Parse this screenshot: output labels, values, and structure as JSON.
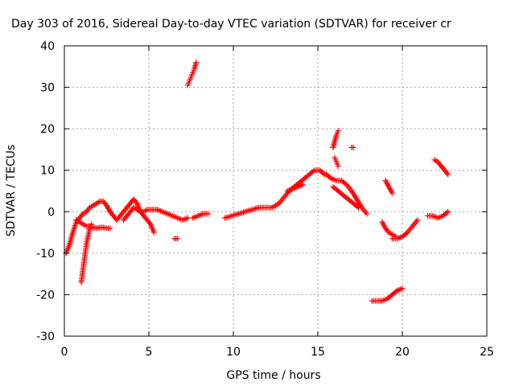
{
  "chart_data": {
    "type": "scatter",
    "title": "Day 303 of 2016, Sidereal Day-to-day VTEC variation (SDTVAR) for receiver cr",
    "xlabel": "GPS time / hours",
    "ylabel": "SDTVAR / TECUs",
    "xlim": [
      0,
      25
    ],
    "ylim": [
      -30,
      40
    ],
    "xticks": [
      0,
      5,
      10,
      15,
      20,
      25
    ],
    "yticks": [
      -30,
      -20,
      -10,
      0,
      10,
      20,
      30,
      40
    ],
    "grid": true,
    "marker": "plus",
    "color": "#ff0000",
    "series": [
      {
        "x": [
          0.1,
          0.3,
          0.5,
          0.7,
          0.9,
          1.1,
          1.3,
          1.5,
          1.7,
          1.9,
          2.1,
          2.3,
          2.5,
          2.7
        ],
        "y": [
          -10,
          -8,
          -5,
          -2.5,
          -1.5,
          -0.5,
          0,
          1,
          1.5,
          2,
          2.5,
          2.5,
          1.5,
          0
        ]
      },
      {
        "x": [
          0.7,
          0.9,
          1.1,
          1.3,
          1.5,
          1.7,
          1.9,
          2.1,
          2.3,
          2.5,
          2.7
        ],
        "y": [
          -2,
          -2.5,
          -3,
          -3.5,
          -3.5,
          -3.8,
          -4,
          -3.8,
          -3.8,
          -4,
          -4
        ]
      },
      {
        "x": [
          1.0,
          1.1,
          1.2,
          1.3,
          1.4,
          1.5,
          1.6
        ],
        "y": [
          -17,
          -14,
          -11,
          -8,
          -6,
          -4,
          -3
        ]
      },
      {
        "x": [
          2.7,
          2.9,
          3.1,
          3.3,
          3.5,
          3.7,
          3.9,
          4.1,
          4.3,
          4.5,
          4.7,
          4.9,
          5.1,
          5.3
        ],
        "y": [
          0,
          -1,
          -2,
          -1,
          0,
          1,
          2,
          3,
          2,
          0,
          -1,
          -2,
          -3,
          -5
        ]
      },
      {
        "x": [
          3.5,
          3.7,
          3.9,
          4.1,
          4.3,
          4.5,
          4.7,
          4.9,
          5.1,
          5.3,
          5.5
        ],
        "y": [
          -2,
          -1,
          0,
          1,
          0.5,
          0,
          0,
          0.5,
          0.5,
          0.5,
          0.5
        ]
      },
      {
        "x": [
          5.5,
          5.8,
          6.1,
          6.4,
          6.7,
          7.0,
          7.3
        ],
        "y": [
          0.5,
          0,
          -0.5,
          -1,
          -1.5,
          -2,
          -1.5
        ]
      },
      {
        "x": [
          6.5,
          6.6,
          6.7
        ],
        "y": [
          -6.5,
          -6.5,
          -6.5
        ]
      },
      {
        "x": [
          7.3,
          7.4,
          7.5,
          7.6,
          7.7,
          7.8
        ],
        "y": [
          30.5,
          31.5,
          32.5,
          33.5,
          34.5,
          36
        ]
      },
      {
        "x": [
          7.6,
          7.9,
          8.2,
          8.5
        ],
        "y": [
          -1.5,
          -1,
          -0.5,
          -0.5
        ]
      },
      {
        "x": [
          9.5,
          9.9,
          10.3,
          10.7,
          11.1,
          11.5,
          11.9,
          12.3,
          12.7
        ],
        "y": [
          -1.5,
          -1,
          -0.5,
          0,
          0.5,
          1,
          1,
          1,
          2
        ]
      },
      {
        "x": [
          12.7,
          13.0,
          13.3,
          13.6,
          13.9,
          14.2,
          14.5,
          14.8,
          15.1,
          15.4
        ],
        "y": [
          2,
          3.5,
          5,
          6,
          7,
          8,
          9,
          10,
          10,
          9
        ]
      },
      {
        "x": [
          13.2,
          13.5,
          13.8,
          14.1
        ],
        "y": [
          5,
          5.5,
          6,
          6.5
        ]
      },
      {
        "x": [
          15.5,
          15.8,
          16.1,
          16.4,
          16.7,
          17.0,
          17.3,
          17.6,
          17.9
        ],
        "y": [
          9,
          8,
          7.5,
          7.5,
          6.5,
          5,
          3,
          1,
          -0.5
        ]
      },
      {
        "x": [
          15.9,
          16.2,
          16.5,
          16.8,
          17.1,
          17.4
        ],
        "y": [
          6,
          5,
          4,
          3,
          2,
          1
        ]
      },
      {
        "x": [
          15.9,
          16.0,
          16.1,
          16.2
        ],
        "y": [
          15.5,
          17,
          18.5,
          19.5
        ]
      },
      {
        "x": [
          16.0,
          16.1,
          16.2
        ],
        "y": [
          13,
          12,
          11
        ]
      },
      {
        "x": [
          17.0,
          17.1
        ],
        "y": [
          15.5,
          15.5
        ]
      },
      {
        "x": [
          18.2,
          18.5,
          18.8,
          19.1,
          19.4,
          19.7,
          20.0
        ],
        "y": [
          -21.5,
          -21.5,
          -21.5,
          -21,
          -20,
          -19,
          -18.5
        ]
      },
      {
        "x": [
          18.8,
          19.0,
          19.2,
          19.4,
          19.6
        ],
        "y": [
          -2.5,
          -4,
          -5,
          -5.5,
          -6
        ]
      },
      {
        "x": [
          19.0,
          19.2,
          19.4
        ],
        "y": [
          7.5,
          6,
          4.5
        ]
      },
      {
        "x": [
          19.4,
          19.7,
          20.0,
          20.3,
          20.6,
          20.9
        ],
        "y": [
          -6.5,
          -6.5,
          -6,
          -5,
          -3.5,
          -2
        ]
      },
      {
        "x": [
          21.5,
          21.8,
          22.1,
          22.4,
          22.7
        ],
        "y": [
          -1,
          -1,
          -1.5,
          -1,
          0
        ]
      },
      {
        "x": [
          21.9,
          22.1,
          22.3,
          22.5,
          22.7
        ],
        "y": [
          12.5,
          12,
          11,
          10,
          9
        ]
      }
    ]
  }
}
